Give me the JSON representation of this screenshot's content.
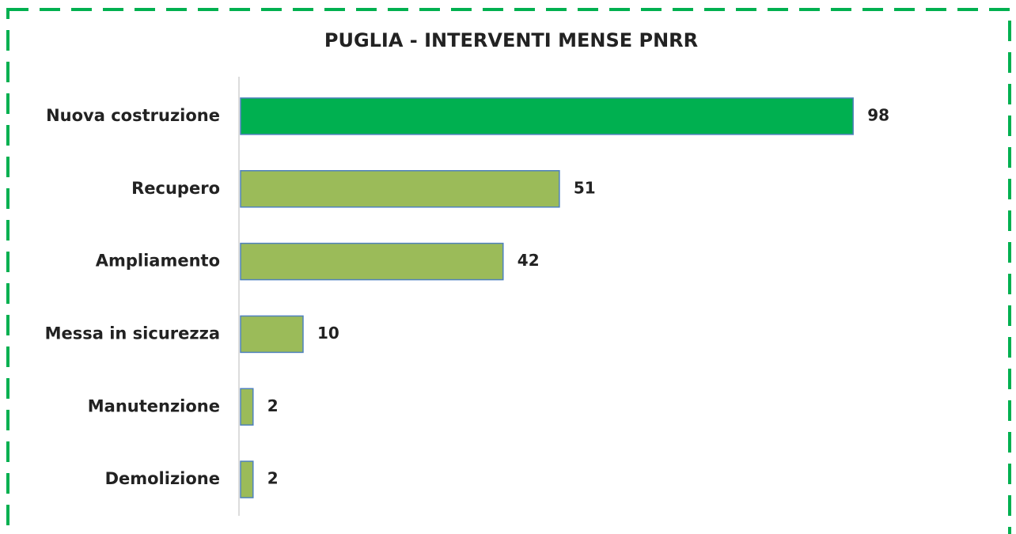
{
  "chart_data": {
    "type": "bar",
    "orientation": "horizontal",
    "title": "PUGLIA - INTERVENTI MENSE PNRR",
    "categories": [
      "Nuova costruzione",
      "Recupero",
      "Ampliamento",
      "Messa in sicurezza",
      "Manutenzione",
      "Demolizione"
    ],
    "values": [
      98,
      51,
      42,
      10,
      2,
      2
    ],
    "colors": [
      "#00b050",
      "#9bbb59",
      "#9bbb59",
      "#9bbb59",
      "#9bbb59",
      "#9bbb59"
    ],
    "xlim": [
      0,
      120
    ]
  }
}
